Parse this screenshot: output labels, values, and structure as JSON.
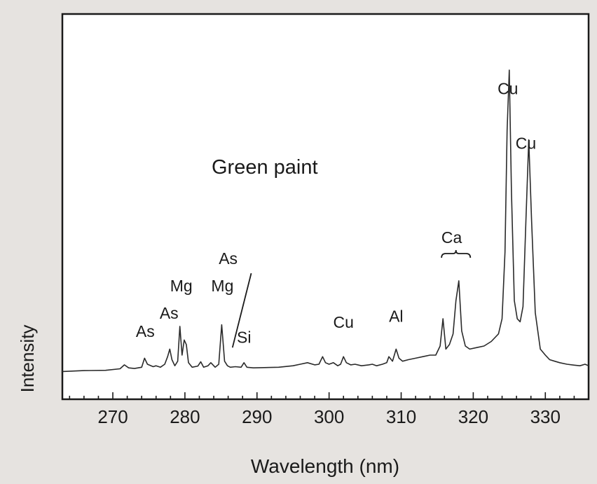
{
  "chart_data": {
    "type": "line",
    "title": "",
    "annotation": "Green paint",
    "xlabel": "Wavelength (nm)",
    "ylabel": "Intensity",
    "xlim": [
      263,
      336
    ],
    "ylim": [
      0,
      100
    ],
    "xticks": [
      270,
      280,
      290,
      300,
      310,
      320,
      330
    ],
    "x_minor_step": 2,
    "grid": false,
    "legend": "none",
    "line_color": "#2a2a2a",
    "peak_labels": [
      {
        "text": "As",
        "x": 274.5,
        "y": 12
      },
      {
        "text": "As",
        "x": 277.8,
        "y": 18
      },
      {
        "text": "Mg",
        "x": 279.5,
        "y": 27
      },
      {
        "text": "Mg",
        "x": 285.2,
        "y": 27
      },
      {
        "text": "As",
        "x": 286.0,
        "y": 36
      },
      {
        "text": "Si",
        "x": 288.2,
        "y": 10
      },
      {
        "text": "Cu",
        "x": 302.0,
        "y": 15
      },
      {
        "text": "Al",
        "x": 309.3,
        "y": 17
      },
      {
        "text": "Ca",
        "x": 317.0,
        "y": 43
      },
      {
        "text": "Cu",
        "x": 324.8,
        "y": 92
      },
      {
        "text": "Cu",
        "x": 327.3,
        "y": 74
      }
    ],
    "series": [
      {
        "x": [
          263.0,
          266.0,
          269.0,
          271.0,
          271.6,
          272.2,
          273.0,
          274.0,
          274.4,
          274.8,
          275.6,
          276.0,
          276.6,
          277.2,
          277.6,
          277.9,
          278.2,
          278.6,
          279.0,
          279.3,
          279.6,
          279.9,
          280.2,
          280.5,
          281.0,
          281.8,
          282.2,
          282.6,
          283.2,
          283.6,
          284.2,
          284.7,
          285.1,
          285.5,
          285.9,
          286.3,
          287.0,
          287.8,
          288.2,
          288.6,
          289.5,
          291.0,
          293.0,
          295.0,
          296.0,
          297.0,
          298.0,
          298.6,
          299.1,
          299.5,
          300.0,
          300.6,
          301.2,
          301.6,
          302.0,
          302.4,
          303.0,
          303.6,
          304.5,
          305.5,
          306.0,
          306.6,
          307.4,
          308.0,
          308.3,
          308.8,
          309.3,
          309.7,
          310.2,
          311.0,
          312.0,
          313.0,
          314.0,
          314.8,
          315.4,
          315.8,
          316.2,
          316.7,
          317.2,
          317.6,
          318.0,
          318.4,
          318.9,
          319.5,
          320.5,
          321.5,
          322.5,
          323.5,
          324.0,
          324.4,
          324.7,
          325.0,
          325.3,
          325.7,
          326.1,
          326.5,
          326.9,
          327.3,
          327.7,
          328.1,
          328.6,
          329.3,
          330.0,
          330.6,
          331.3,
          332.0,
          333.0,
          334.0,
          334.8,
          335.5,
          336.0
        ],
        "y": [
          0.6,
          0.9,
          1.0,
          1.5,
          2.8,
          1.8,
          1.6,
          2.0,
          5.0,
          3.0,
          2.2,
          2.5,
          2.0,
          3.0,
          5.5,
          8.0,
          4.5,
          2.5,
          4.0,
          15.5,
          6.0,
          11.0,
          9.5,
          3.5,
          2.0,
          2.4,
          3.8,
          2.0,
          2.5,
          3.5,
          2.0,
          3.0,
          16.0,
          4.0,
          2.5,
          2.0,
          2.2,
          2.0,
          3.5,
          2.0,
          1.8,
          1.9,
          2.0,
          2.5,
          3.0,
          3.5,
          2.8,
          3.0,
          5.5,
          3.5,
          3.0,
          3.5,
          2.5,
          3.0,
          5.5,
          3.5,
          2.8,
          3.0,
          2.5,
          2.8,
          3.0,
          2.5,
          3.0,
          3.5,
          5.5,
          4.0,
          8.0,
          5.0,
          4.0,
          4.5,
          5.0,
          5.5,
          6.0,
          6.0,
          9.0,
          18.0,
          8.0,
          9.5,
          13.0,
          24.0,
          30.5,
          14.0,
          9.0,
          8.0,
          8.5,
          9.0,
          10.5,
          13.0,
          18.0,
          40.0,
          80.0,
          100.0,
          60.0,
          24.0,
          18.0,
          17.0,
          22.0,
          50.0,
          77.0,
          50.0,
          20.0,
          8.0,
          6.0,
          4.5,
          4.0,
          3.5,
          3.0,
          2.7,
          2.5,
          3.0,
          2.5
        ]
      }
    ]
  }
}
